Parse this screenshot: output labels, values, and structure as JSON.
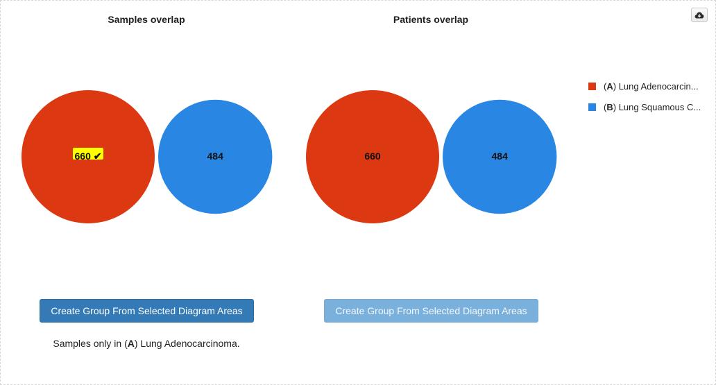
{
  "samples_panel": {
    "title": "Samples overlap",
    "button_label": "Create Group From Selected Diagram Areas",
    "caption": {
      "prefix": "Samples only in (",
      "group_letter": "A",
      "suffix": ") Lung Adenocarcinoma."
    },
    "circles": [
      {
        "set": "A",
        "count": "660",
        "color": "#dc3912",
        "selected": true,
        "selected_marker": "✔",
        "highlight_color": "#ffff00"
      },
      {
        "set": "B",
        "count": "484",
        "color": "#2986e2",
        "selected": false
      }
    ]
  },
  "patients_panel": {
    "title": "Patients overlap",
    "button_label": "Create Group From Selected Diagram Areas",
    "circles": [
      {
        "set": "A",
        "count": "660",
        "color": "#dc3912",
        "selected": false
      },
      {
        "set": "B",
        "count": "484",
        "color": "#2986e2",
        "selected": false
      }
    ]
  },
  "legend": {
    "items": [
      {
        "letter": "A",
        "label": " Lung Adenocarcin...",
        "color": "#dc3912"
      },
      {
        "letter": "B",
        "label": " Lung Squamous C...",
        "color": "#2986e2"
      }
    ]
  },
  "toolbar": {
    "download_icon": "cloud-download-icon"
  }
}
